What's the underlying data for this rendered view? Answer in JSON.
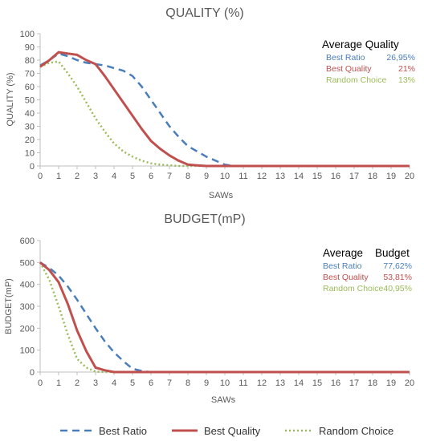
{
  "colors": {
    "best_ratio": "#4a7ebb",
    "best_quality": "#c0504d",
    "random_choice": "#9bbb59",
    "axis": "#bfbfbf",
    "text": "#595959"
  },
  "legend": [
    {
      "key": "best_ratio",
      "label": "Best Ratio",
      "dash": "dashed"
    },
    {
      "key": "best_quality",
      "label": "Best Quality",
      "dash": "solid"
    },
    {
      "key": "random_choice",
      "label": "Random Choice",
      "dash": "dotted"
    }
  ],
  "chart_data": [
    {
      "type": "line",
      "title": "QUALITY (%)",
      "xlabel": "SAWs",
      "ylabel": "QUALITY (%)",
      "x": [
        0,
        0.5,
        1,
        1.5,
        2,
        2.5,
        3,
        3.5,
        4,
        4.5,
        5,
        5.5,
        6,
        6.5,
        7,
        7.5,
        8,
        8.5,
        9,
        9.5,
        10,
        10.5,
        11,
        12,
        13,
        14,
        15,
        16,
        17,
        18,
        19,
        20
      ],
      "xticks": [
        0,
        1,
        2,
        3,
        4,
        5,
        6,
        7,
        8,
        9,
        10,
        11,
        12,
        13,
        14,
        15,
        16,
        17,
        18,
        19,
        20
      ],
      "xlim": [
        0,
        20
      ],
      "ylim": [
        0,
        100
      ],
      "yticks": [
        0,
        10,
        20,
        30,
        40,
        50,
        60,
        70,
        80,
        90,
        100
      ],
      "grid": false,
      "series": [
        {
          "key": "best_ratio",
          "name": "Best Ratio",
          "values": [
            76,
            80,
            85,
            83,
            80,
            78,
            77,
            76,
            74,
            72,
            68,
            60,
            50,
            40,
            30,
            22,
            15,
            11,
            7,
            4,
            1,
            0,
            0,
            0,
            0,
            0,
            0,
            0,
            0,
            0,
            0,
            0
          ]
        },
        {
          "key": "best_quality",
          "name": "Best Quality",
          "values": [
            75,
            80,
            86,
            85,
            84,
            80,
            77,
            68,
            58,
            48,
            38,
            28,
            19,
            13,
            8,
            4,
            1,
            0.5,
            0,
            0,
            0,
            0,
            0,
            0,
            0,
            0,
            0,
            0,
            0,
            0,
            0,
            0
          ]
        },
        {
          "key": "random_choice",
          "name": "Random Choice",
          "values": [
            75,
            78,
            79,
            70,
            60,
            48,
            36,
            26,
            17,
            11,
            7,
            4,
            2,
            1,
            0.5,
            0,
            0,
            0,
            0,
            0,
            0,
            0,
            0,
            0,
            0,
            0,
            0,
            0,
            0,
            0,
            0,
            0
          ]
        }
      ],
      "average": {
        "heading": "Average Quality",
        "rows": [
          {
            "key": "best_ratio",
            "label": "Best Ratio",
            "value": "26,95%"
          },
          {
            "key": "best_quality",
            "label": "Best Quality",
            "value": "21%"
          },
          {
            "key": "random_choice",
            "label": "Random Choice",
            "value": "13%"
          }
        ]
      }
    },
    {
      "type": "line",
      "title": "BUDGET(mP)",
      "xlabel": "SAWs",
      "ylabel": "BUDGET(mP)",
      "x": [
        0,
        0.5,
        1,
        1.5,
        2,
        2.5,
        3,
        3.5,
        4,
        4.5,
        5,
        5.5,
        6,
        7,
        8,
        9,
        10,
        11,
        12,
        13,
        14,
        15,
        16,
        17,
        18,
        19,
        20
      ],
      "xticks": [
        0,
        1,
        2,
        3,
        4,
        5,
        6,
        7,
        8,
        9,
        10,
        11,
        12,
        13,
        14,
        15,
        16,
        17,
        18,
        19,
        20
      ],
      "xlim": [
        0,
        20
      ],
      "ylim": [
        0,
        600
      ],
      "yticks": [
        0,
        100,
        200,
        300,
        400,
        500,
        600
      ],
      "grid": false,
      "series": [
        {
          "key": "best_ratio",
          "name": "Best Ratio",
          "values": [
            500,
            475,
            440,
            390,
            330,
            265,
            200,
            140,
            90,
            50,
            15,
            5,
            0,
            0,
            0,
            0,
            0,
            0,
            0,
            0,
            0,
            0,
            0,
            0,
            0,
            0,
            0
          ]
        },
        {
          "key": "best_quality",
          "name": "Best Quality",
          "values": [
            500,
            465,
            410,
            310,
            190,
            95,
            20,
            8,
            0,
            0,
            0,
            0,
            0,
            0,
            0,
            0,
            0,
            0,
            0,
            0,
            0,
            0,
            0,
            0,
            0,
            0,
            0
          ]
        },
        {
          "key": "random_choice",
          "name": "Random Choice",
          "values": [
            500,
            420,
            300,
            170,
            60,
            20,
            2,
            0,
            0,
            0,
            0,
            0,
            0,
            0,
            0,
            0,
            0,
            0,
            0,
            0,
            0,
            0,
            0,
            0,
            0,
            0,
            0
          ]
        }
      ],
      "average": {
        "heading": "Average    Budget",
        "rows": [
          {
            "key": "best_ratio",
            "label": "Best Ratio",
            "value": "77,62%"
          },
          {
            "key": "best_quality",
            "label": "Best Quality",
            "value": "53,81%"
          },
          {
            "key": "random_choice",
            "label": "Random Choice",
            "value": "40,95%"
          }
        ]
      }
    }
  ]
}
